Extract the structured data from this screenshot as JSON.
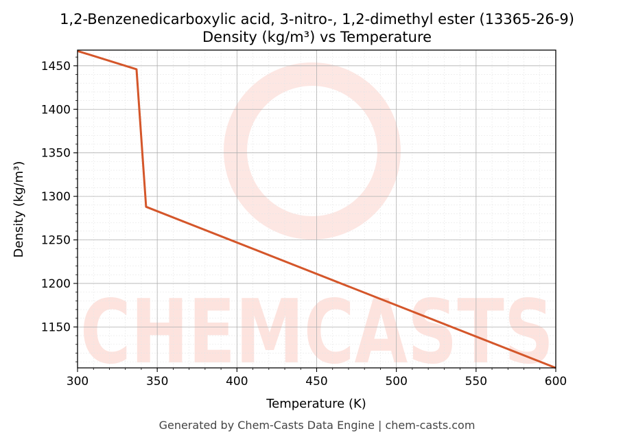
{
  "chart_data": {
    "type": "line",
    "title": "1,2-Benzenedicarboxylic acid, 3-nitro-, 1,2-dimethyl ester (13365-26-9)",
    "subtitle": "Density (kg/m³) vs Temperature",
    "xlabel": "Temperature (K)",
    "ylabel": "Density (kg/m³)",
    "xlim": [
      300,
      600
    ],
    "ylim": [
      1103,
      1468
    ],
    "x_ticks": [
      300,
      350,
      400,
      450,
      500,
      550,
      600
    ],
    "y_ticks": [
      1150,
      1200,
      1250,
      1300,
      1350,
      1400,
      1450
    ],
    "grid": true,
    "legend": "none",
    "series": [
      {
        "color": "#d4562a",
        "x": [
          300,
          337,
          343,
          600
        ],
        "y": [
          1467,
          1446,
          1288,
          1103
        ]
      }
    ],
    "footer": "Generated by Chem-Casts Data Engine | chem-casts.com",
    "watermark": "CHEMCASTS"
  }
}
